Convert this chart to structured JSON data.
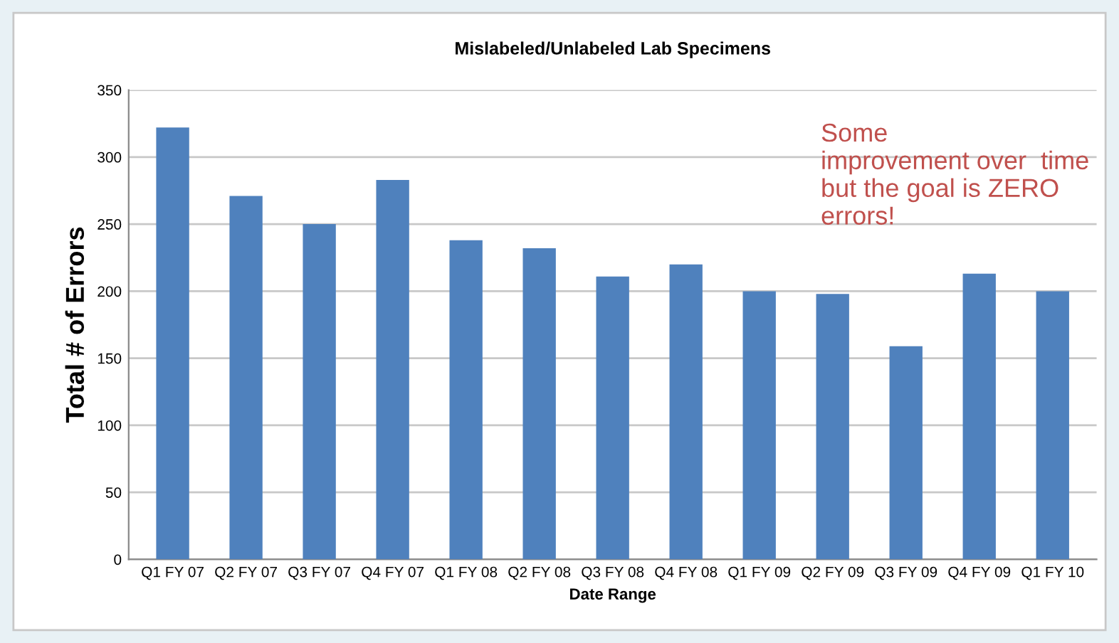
{
  "chart_data": {
    "type": "bar",
    "title": "Mislabeled/Unlabeled Lab Specimens",
    "xlabel": "Date Range",
    "ylabel": "Total # of Errors",
    "categories": [
      "Q1 FY 07",
      "Q2 FY 07",
      "Q3 FY 07",
      "Q4 FY 07",
      "Q1 FY 08",
      "Q2 FY 08",
      "Q3 FY 08",
      "Q4 FY 08",
      "Q1 FY 09",
      "Q2 FY 09",
      "Q3 FY 09",
      "Q4 FY 09",
      "Q1 FY 10"
    ],
    "values": [
      322,
      271,
      250,
      283,
      238,
      232,
      211,
      220,
      200,
      198,
      159,
      213,
      200
    ],
    "color": "#4f81bd",
    "ylim": [
      0,
      350
    ],
    "yticks": [
      0,
      50,
      100,
      150,
      200,
      250,
      300,
      350
    ],
    "grid": "y",
    "legend": false,
    "annotations": [
      "Some\nimprovement over  time\nbut the goal is ZERO\nerrors!"
    ]
  }
}
